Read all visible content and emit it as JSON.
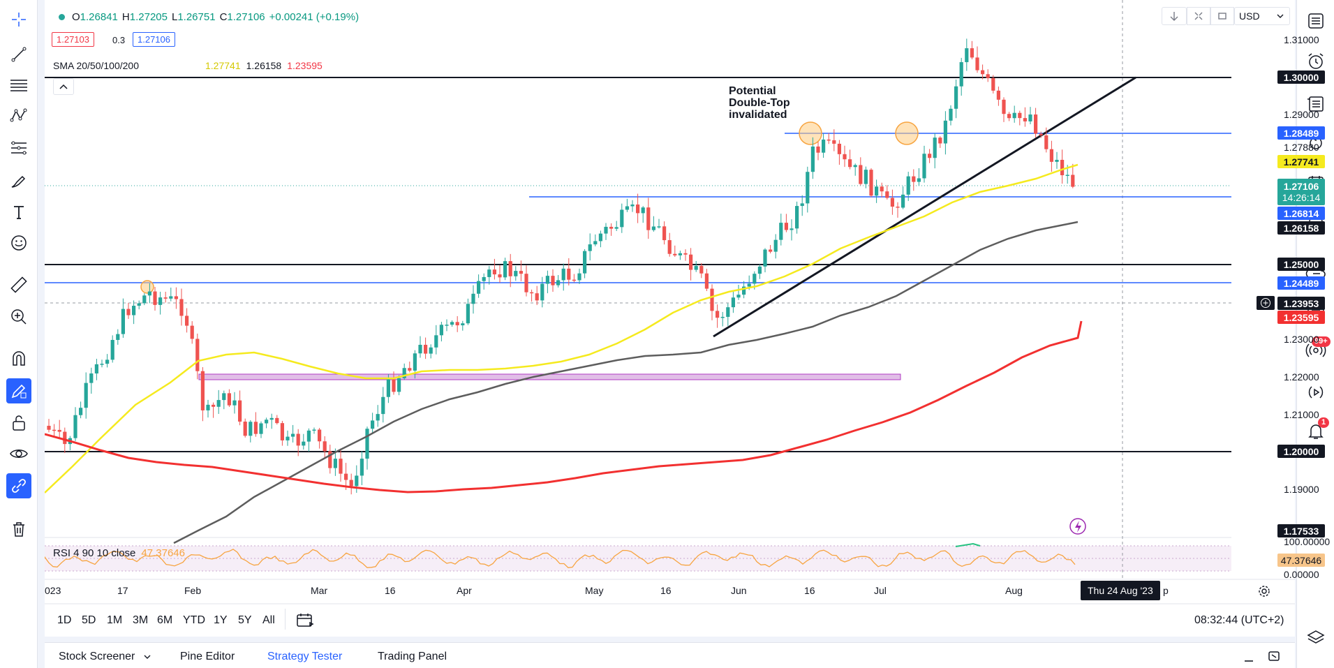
{
  "legend": {
    "ohlc": {
      "o_label": "O",
      "o": "1.26841",
      "h_label": "H",
      "h": "1.27205",
      "l_label": "L",
      "l": "1.26751",
      "c_label": "C",
      "c": "1.27106",
      "change": "+0.00241 (+0.19%)"
    },
    "bid": "1.27103",
    "spread": "0.3",
    "ask": "1.27106",
    "sma_label": "SMA 20/50/100/200",
    "sma_values": [
      "1.27741",
      "1.26158",
      "1.23595"
    ],
    "rsi_label": "RSI 4 90 10 close",
    "rsi_value": "47.37646"
  },
  "toolbar": {
    "currency": "USD"
  },
  "annotation": {
    "line1": "Potential",
    "line2": "Double-Top",
    "line3": "invalidated"
  },
  "price_axis": {
    "ticks": [
      "1.31000",
      "1.29000",
      "1.27880",
      "1.23000",
      "1.22000",
      "1.21000",
      "1.19000"
    ],
    "labels": {
      "l_130000": "1.30000",
      "l_128489": "1.28489",
      "l_127741": "1.27741",
      "l_127106": "1.27106",
      "countdown": "14:26:14",
      "l_126814": "1.26814",
      "l_126158": "1.26158",
      "l_125000": "1.25000",
      "l_124489": "1.24489",
      "l_123953": "1.23953",
      "l_123595": "1.23595",
      "l_120000": "1.20000",
      "l_117533": "1.17533"
    },
    "rsi_ticks": [
      "100.00000",
      "0.00000"
    ],
    "rsi_label_value": "47.37646"
  },
  "time_axis": {
    "labels": [
      "023",
      "17",
      "Feb",
      "Mar",
      "16",
      "Apr",
      "May",
      "16",
      "Jun",
      "16",
      "Jul",
      "Aug"
    ],
    "crosshair_label": "Thu 24 Aug '23",
    "after_crosshair": "p"
  },
  "range_buttons": [
    "1D",
    "5D",
    "1M",
    "3M",
    "6M",
    "YTD",
    "1Y",
    "5Y",
    "All"
  ],
  "clock": "08:32:44 (UTC+2)",
  "bottom_tabs": [
    "Stock Screener",
    "Pine Editor",
    "Strategy Tester",
    "Trading Panel"
  ],
  "notifications": {
    "chat_badge": "99+",
    "alert_badge": "1"
  },
  "colors": {
    "up": "#26a69a",
    "down": "#ef5350",
    "sma20": "#f5ea1e",
    "sma100": "#5d5d5d",
    "sma200": "#f23030",
    "blue_line": "#2962ff",
    "accent": "#2962ff"
  },
  "icons": {
    "left": [
      "crosshair-icon",
      "trend-line-icon",
      "fib-icon",
      "pattern-icon",
      "prediction-icon",
      "brush-icon",
      "text-icon",
      "emoji-icon",
      "ruler-icon",
      "zoom-in-icon",
      "magnet-icon",
      "draw-mode-icon",
      "lock-icon",
      "eye-icon",
      "link-icon",
      "trash-icon"
    ],
    "right": [
      "watchlist-icon",
      "alarm-icon",
      "data-window-icon",
      "hotlist-icon",
      "calendar-icon",
      "ideas-icon",
      "chat-cloud-icon",
      "chat-icon",
      "stream-icon",
      "broadcast-icon",
      "bell-icon",
      "layers-icon"
    ]
  }
}
